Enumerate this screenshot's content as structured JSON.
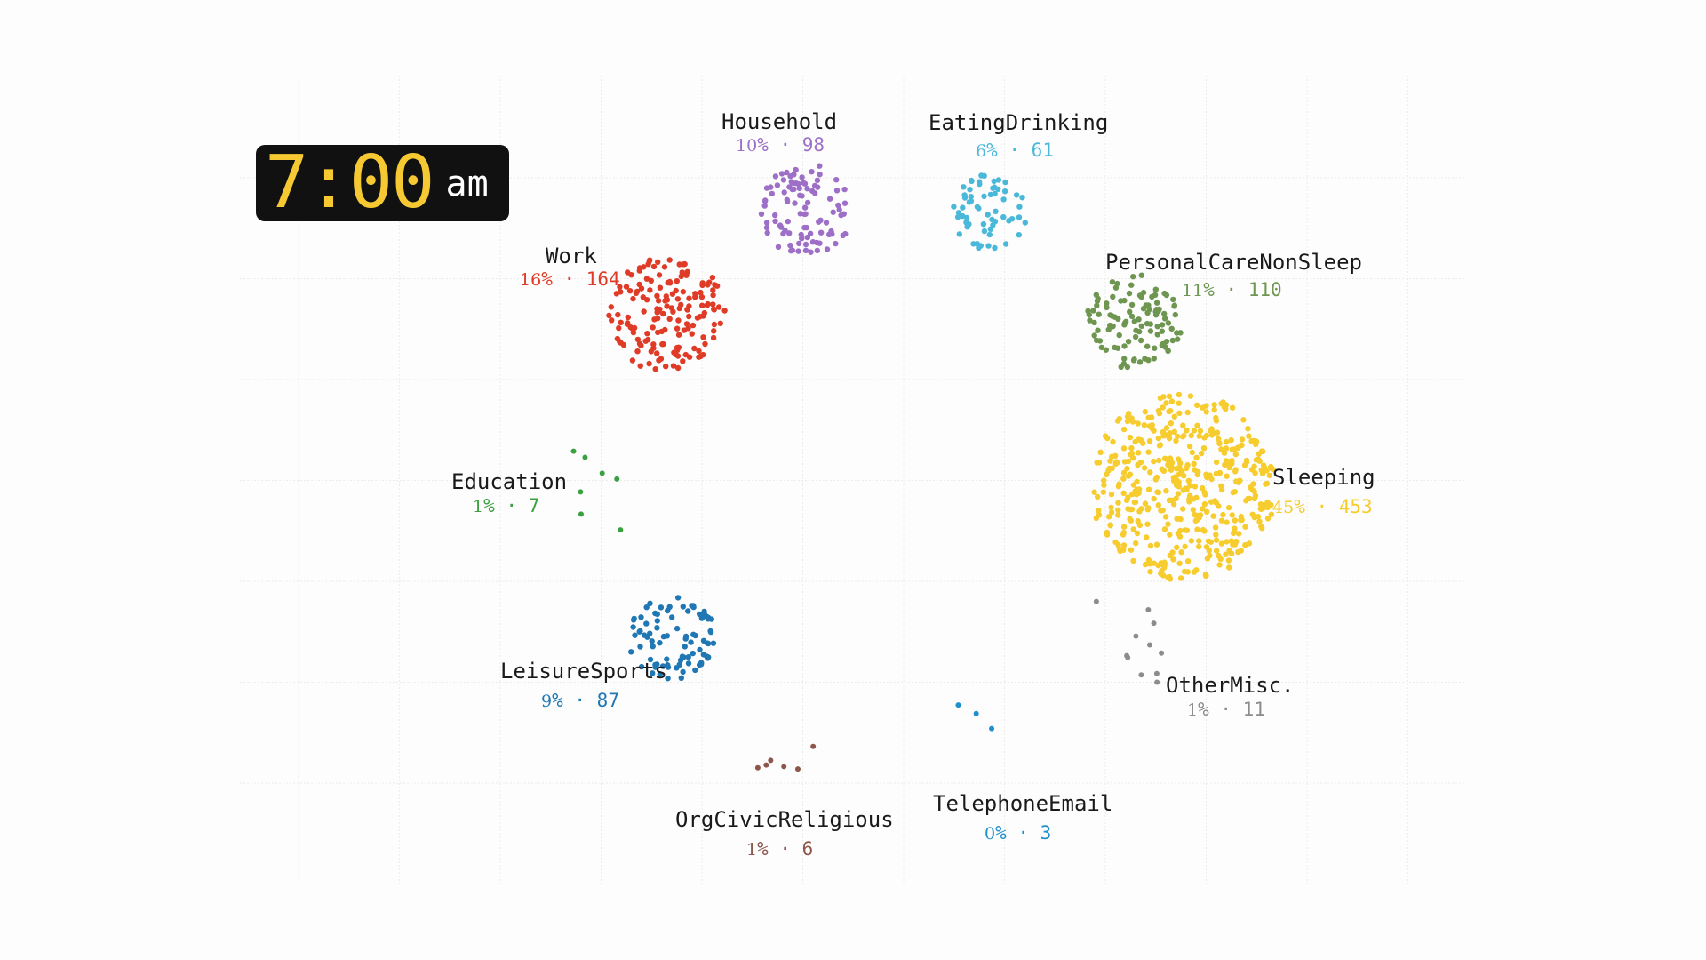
{
  "clock": {
    "time": "7:00",
    "ampm": "am"
  },
  "chart_data": {
    "type": "scatter",
    "title": "",
    "description_kind": "clustered dot plot of people by activity",
    "categories": [
      {
        "name": "Household",
        "percent": "10",
        "count": "98",
        "color": "#9d6fc7"
      },
      {
        "name": "EatingDrinking",
        "percent": "6",
        "count": "61",
        "color": "#4ab8d9"
      },
      {
        "name": "Work",
        "percent": "16",
        "count": "164",
        "color": "#df3b26"
      },
      {
        "name": "PersonalCareNonSleep",
        "percent": "11",
        "count": "110",
        "color": "#6e9651"
      },
      {
        "name": "Education",
        "percent": "1",
        "count": "7",
        "color": "#3aa040"
      },
      {
        "name": "Sleeping",
        "percent": "45",
        "count": "453",
        "color": "#f6cc2e"
      },
      {
        "name": "LeisureSports",
        "percent": "9",
        "count": "87",
        "color": "#1f77b4"
      },
      {
        "name": "OtherMisc.",
        "percent": "1",
        "count": "11",
        "color": "#8c8c8c"
      },
      {
        "name": "OrgCivicReligious",
        "percent": "1",
        "count": "6",
        "color": "#8c564b"
      },
      {
        "name": "TelephoneEmail",
        "percent": "0",
        "count": "3",
        "color": "#1f8fcc"
      }
    ],
    "percent_symbol": "%",
    "separator": "·",
    "grid": true,
    "legend": "none"
  }
}
